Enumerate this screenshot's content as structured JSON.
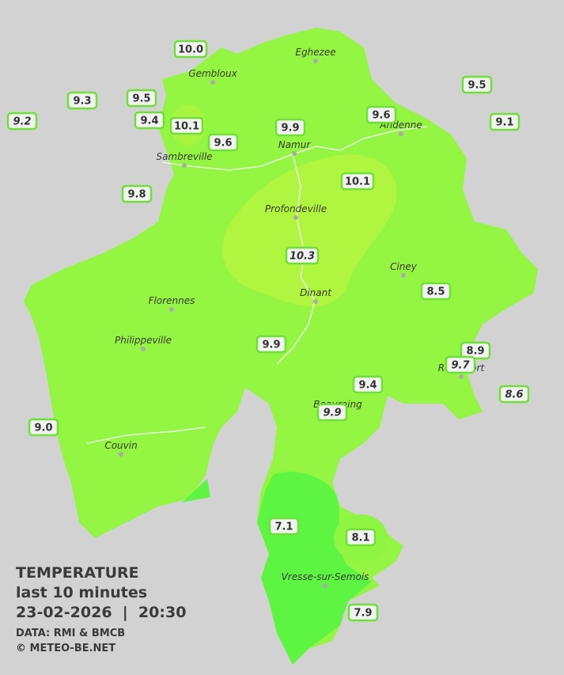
{
  "title": "TEMPERATURE",
  "subtitle": "last 10 minutes",
  "datetime": "23-02-2026  |  20:30",
  "source": "DATA: RMI & BMCB",
  "credit": "© METEO-BE.NET",
  "cities": [
    "Eghezee",
    "Gembloux",
    "Andenne",
    "Namur",
    "Sambreville",
    "Profondeville",
    "Ciney",
    "Dinant",
    "Florennes",
    "Philippeville",
    "Rochefort",
    "Beauraing",
    "Couvin",
    "Vresse-sur-Semois"
  ],
  "stations": [
    {
      "label": "10.0",
      "italic": false
    },
    {
      "label": "9.3",
      "italic": false
    },
    {
      "label": "9.5",
      "italic": false
    },
    {
      "label": "9.2",
      "italic": true
    },
    {
      "label": "9.4",
      "italic": false
    },
    {
      "label": "10.1",
      "italic": false
    },
    {
      "label": "9.6",
      "italic": false
    },
    {
      "label": "9.9",
      "italic": false
    },
    {
      "label": "9.6",
      "italic": false
    },
    {
      "label": "9.5",
      "italic": false
    },
    {
      "label": "9.1",
      "italic": false
    },
    {
      "label": "9.8",
      "italic": false
    },
    {
      "label": "10.1",
      "italic": false
    },
    {
      "label": "10.3",
      "italic": true
    },
    {
      "label": "8.5",
      "italic": false
    },
    {
      "label": "9.9",
      "italic": false
    },
    {
      "label": "8.9",
      "italic": false
    },
    {
      "label": "9.7",
      "italic": true
    },
    {
      "label": "9.4",
      "italic": false
    },
    {
      "label": "9.9",
      "italic": true
    },
    {
      "label": "8.6",
      "italic": true
    },
    {
      "label": "9.0",
      "italic": false
    },
    {
      "label": "7.1",
      "italic": false
    },
    {
      "label": "8.1",
      "italic": false
    },
    {
      "label": "7.9",
      "italic": false
    }
  ]
}
